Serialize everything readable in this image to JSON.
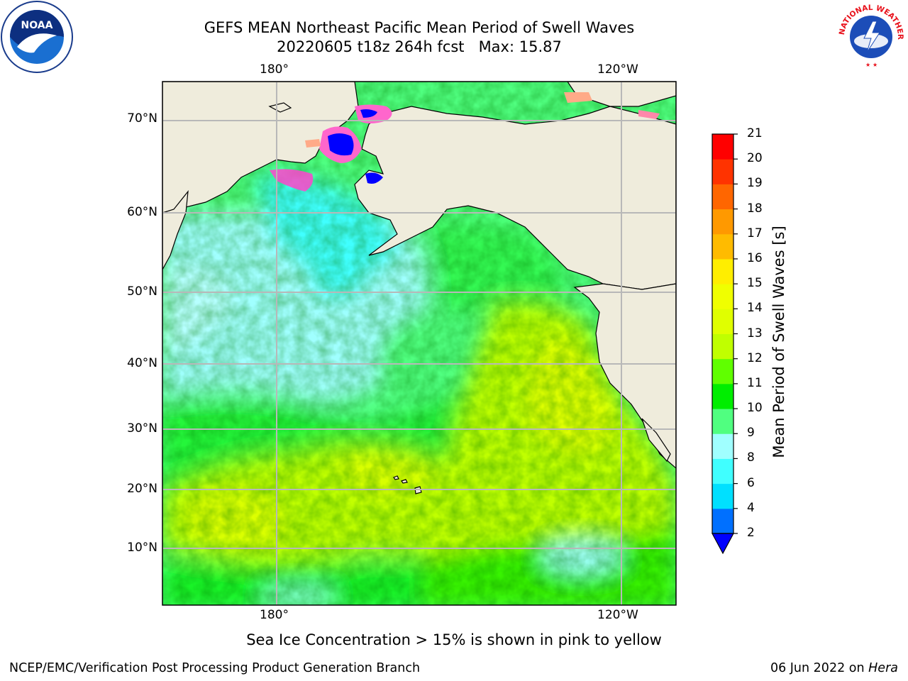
{
  "title": {
    "line1": "GEFS MEAN Northeast Pacific Mean Period of Swell Waves",
    "line2": "20220605 t18z 264h fcst   Max: 15.87"
  },
  "logos": {
    "left": {
      "icon": "noaa-logo",
      "text": "NOAA"
    },
    "right": {
      "icon": "national-weather-service-logo",
      "text": "NATIONAL WEATHER SERVICE"
    }
  },
  "map": {
    "projection": "equirectangular",
    "lon_ticks_top": [
      "180°",
      "120°W"
    ],
    "lon_ticks_bottom": [
      "180°",
      "120°W"
    ],
    "lat_ticks": [
      "70°N",
      "60°N",
      "50°N",
      "40°N",
      "30°N",
      "20°N",
      "10°N"
    ],
    "land_color": "#efecdc",
    "grid_color": "#b8b8b8",
    "ice_note": "Sea Ice Concentration > 15% is shown in pink to yellow"
  },
  "colorbar": {
    "label": "Mean Period of Swell Waves [s]",
    "ticks": [
      "2",
      "4",
      "6",
      "8",
      "9",
      "10",
      "11",
      "12",
      "13",
      "14",
      "15",
      "16",
      "17",
      "18",
      "19",
      "20",
      "21"
    ],
    "colors": [
      "#0070ff",
      "#00e0ff",
      "#40ffff",
      "#a0ffff",
      "#50ff80",
      "#00ee00",
      "#60ff00",
      "#c0ff00",
      "#e0ff00",
      "#f0ff00",
      "#ffee00",
      "#ffbb00",
      "#ff9900",
      "#ff6600",
      "#ff3300",
      "#ff0000"
    ],
    "under_color": "#0000ff",
    "vmin": 2,
    "vmax": 21
  },
  "footer": {
    "left": "NCEP/EMC/Verification Post Processing Product Generation Branch",
    "date": "06 Jun 2022 on ",
    "machine": "Hera"
  }
}
